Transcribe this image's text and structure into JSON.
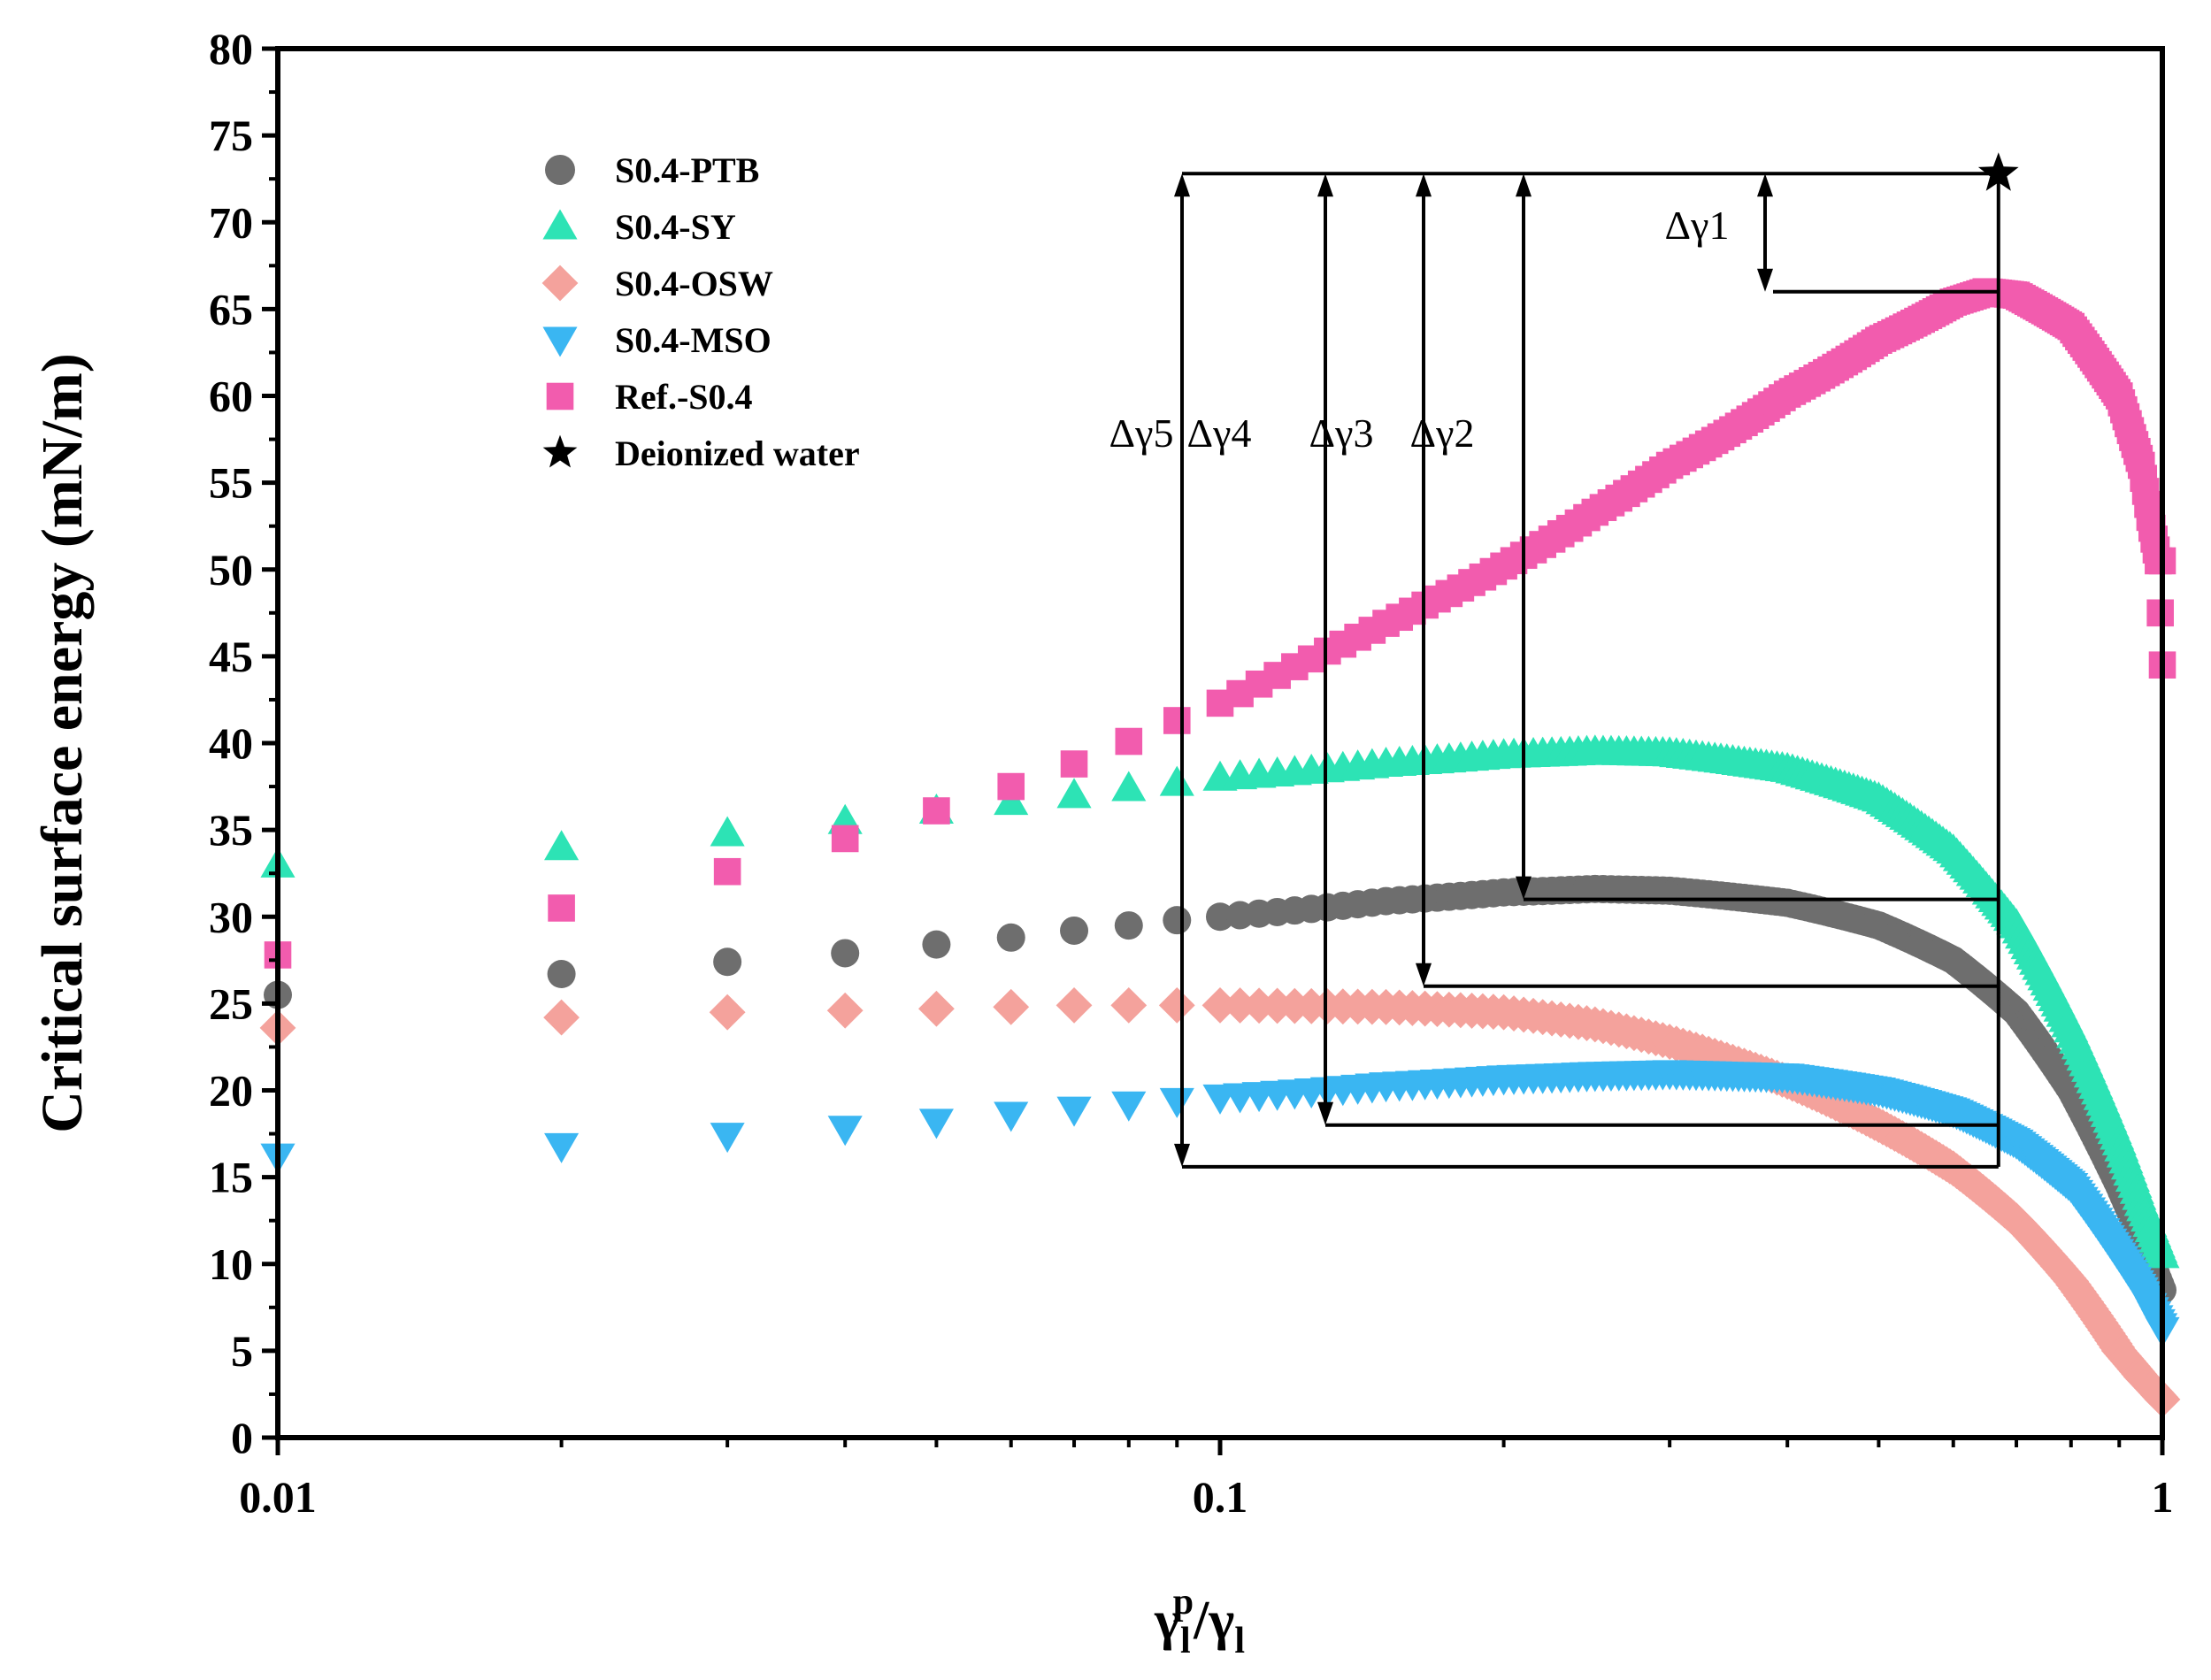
{
  "chart_data": {
    "type": "scatter",
    "xscale": "log",
    "xlim": [
      0.01,
      1.0
    ],
    "ylim": [
      0,
      80
    ],
    "xlabel": {
      "base": "γ",
      "sub1": "l",
      "sup": "p",
      "slash": "/",
      "base2": "γ",
      "sub2": "l"
    },
    "ylabel": "Critical surface energy (mN/m)",
    "x_tick_labels": [
      "0.01",
      "0.1",
      "1"
    ],
    "y_tick_labels": [
      "0",
      "5",
      "10",
      "15",
      "20",
      "25",
      "30",
      "35",
      "40",
      "45",
      "50",
      "55",
      "60",
      "65",
      "70",
      "75",
      "80"
    ],
    "legend_position": "top-left",
    "series": [
      {
        "name": "S0.4-PTB",
        "marker": "circle",
        "color": "#6e6e6e",
        "x": [
          0.01,
          0.02,
          0.03,
          0.04,
          0.05,
          0.06,
          0.07,
          0.08,
          0.09,
          0.1,
          0.15,
          0.2,
          0.25,
          0.3,
          0.4,
          0.5,
          0.6,
          0.7,
          0.8,
          0.9,
          0.95,
          1.0
        ],
        "y": [
          25.5,
          26.7,
          27.4,
          27.9,
          28.4,
          28.8,
          29.2,
          29.5,
          29.8,
          30.0,
          30.9,
          31.4,
          31.6,
          31.5,
          30.8,
          29.5,
          27.5,
          24.5,
          20.0,
          14.5,
          11.5,
          8.5
        ]
      },
      {
        "name": "S0.4-SY",
        "marker": "triangle-up",
        "color": "#2de3b5",
        "x": [
          0.01,
          0.02,
          0.03,
          0.04,
          0.05,
          0.06,
          0.07,
          0.08,
          0.09,
          0.1,
          0.15,
          0.2,
          0.25,
          0.3,
          0.4,
          0.5,
          0.6,
          0.7,
          0.8,
          0.9,
          0.95,
          1.0
        ],
        "y": [
          33.0,
          34.0,
          34.8,
          35.5,
          36.1,
          36.6,
          37.0,
          37.4,
          37.7,
          38.0,
          38.8,
          39.3,
          39.5,
          39.4,
          38.5,
          36.8,
          33.8,
          29.5,
          23.5,
          17.0,
          13.5,
          10.5
        ]
      },
      {
        "name": "S0.4-OSW",
        "marker": "diamond",
        "color": "#f4a29c",
        "x": [
          0.01,
          0.02,
          0.03,
          0.04,
          0.05,
          0.06,
          0.07,
          0.08,
          0.09,
          0.1,
          0.15,
          0.2,
          0.25,
          0.3,
          0.4,
          0.5,
          0.6,
          0.7,
          0.8,
          0.9,
          0.95,
          1.0
        ],
        "y": [
          23.6,
          24.2,
          24.5,
          24.6,
          24.7,
          24.8,
          24.9,
          24.9,
          24.9,
          24.9,
          24.8,
          24.5,
          23.8,
          22.8,
          20.5,
          18.0,
          15.5,
          12.5,
          9.0,
          5.0,
          3.5,
          2.2
        ]
      },
      {
        "name": "S0.4-MSO",
        "marker": "triangle-down",
        "color": "#3ab6f2",
        "x": [
          0.01,
          0.02,
          0.03,
          0.04,
          0.05,
          0.06,
          0.07,
          0.08,
          0.09,
          0.1,
          0.15,
          0.2,
          0.25,
          0.3,
          0.4,
          0.5,
          0.6,
          0.7,
          0.8,
          0.9,
          0.95,
          1.0
        ],
        "y": [
          16.2,
          16.8,
          17.4,
          17.8,
          18.2,
          18.6,
          18.9,
          19.2,
          19.4,
          19.6,
          20.3,
          20.7,
          20.9,
          21.0,
          20.8,
          20.0,
          18.8,
          17.0,
          14.5,
          10.5,
          8.5,
          6.2
        ]
      },
      {
        "name": "Ref.-S0.4",
        "marker": "square",
        "color": "#f25cae",
        "x": [
          0.01,
          0.02,
          0.03,
          0.04,
          0.05,
          0.06,
          0.07,
          0.08,
          0.09,
          0.1,
          0.11,
          0.12,
          0.13,
          0.14,
          0.15,
          0.17,
          0.2,
          0.25,
          0.3,
          0.4,
          0.5,
          0.6,
          0.65,
          0.7,
          0.8,
          0.9,
          0.95,
          0.97,
          0.99,
          1.0
        ],
        "y": [
          27.8,
          30.5,
          32.6,
          34.5,
          36.1,
          37.5,
          38.8,
          40.1,
          41.3,
          42.3,
          43.4,
          44.4,
          45.3,
          46.1,
          46.9,
          48.3,
          50.2,
          53.3,
          56.0,
          60.1,
          63.2,
          65.4,
          66.0,
          65.8,
          64.0,
          60.0,
          56.0,
          53.0,
          50.5,
          44.5
        ]
      },
      {
        "name": "Deionized water",
        "marker": "star",
        "color": "#000000",
        "x": [
          0.67
        ],
        "y": [
          72.8
        ]
      }
    ],
    "annotations": [
      {
        "label": "Δγ1",
        "from": 72.8,
        "to": 66.0
      },
      {
        "label": "Δγ2",
        "from": 72.8,
        "to": 31.0
      },
      {
        "label": "Δγ3",
        "from": 72.8,
        "to": 26.0
      },
      {
        "label": "Δγ4",
        "from": 72.8,
        "to": 18.0
      },
      {
        "label": "Δγ5",
        "from": 72.8,
        "to": 15.6
      }
    ]
  }
}
